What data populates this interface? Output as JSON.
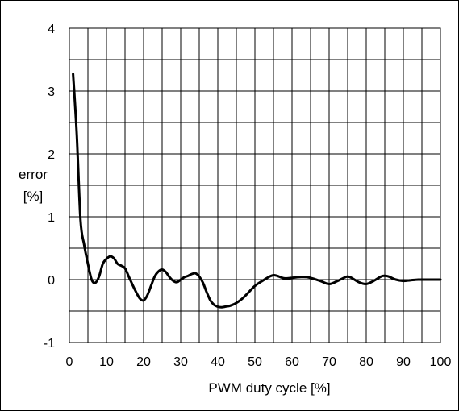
{
  "chart_data": {
    "type": "line",
    "title": "",
    "xlabel": "PWM duty cycle [%]",
    "ylabel_lines": [
      "error",
      "[%]"
    ],
    "xlim": [
      0,
      100
    ],
    "ylim": [
      -1,
      4
    ],
    "xticks": [
      0,
      10,
      20,
      30,
      40,
      50,
      60,
      70,
      80,
      90,
      100
    ],
    "yticks": [
      -1,
      0,
      1,
      2,
      3,
      4
    ],
    "grid": true,
    "grid_x_step": 5,
    "grid_y_step": 0.5,
    "line_color": "#000000",
    "series": [
      {
        "x": [
          1,
          2,
          3,
          4,
          5,
          6,
          7,
          8,
          9,
          10,
          11,
          12,
          13,
          14,
          15,
          16,
          17,
          18,
          19,
          20,
          21,
          22,
          23,
          24,
          25,
          26,
          27,
          28,
          29,
          30,
          31,
          32,
          33,
          34,
          35,
          36,
          37,
          38,
          39,
          40,
          41,
          42,
          43,
          44,
          45,
          46,
          47,
          48,
          50,
          52,
          54,
          55,
          56,
          58,
          60,
          62,
          64,
          66,
          68,
          70,
          72,
          74,
          75,
          76,
          78,
          80,
          82,
          84,
          85,
          86,
          88,
          90,
          92,
          94,
          96,
          98,
          100
        ],
        "y": [
          3.27,
          2.3,
          0.95,
          0.55,
          0.25,
          0.0,
          -0.05,
          0.05,
          0.25,
          0.33,
          0.37,
          0.34,
          0.25,
          0.22,
          0.18,
          0.05,
          -0.08,
          -0.2,
          -0.3,
          -0.33,
          -0.25,
          -0.1,
          0.05,
          0.13,
          0.16,
          0.12,
          0.04,
          -0.02,
          -0.04,
          0.0,
          0.04,
          0.06,
          0.09,
          0.1,
          0.05,
          -0.05,
          -0.2,
          -0.33,
          -0.4,
          -0.43,
          -0.44,
          -0.43,
          -0.42,
          -0.4,
          -0.37,
          -0.33,
          -0.28,
          -0.22,
          -0.1,
          -0.02,
          0.05,
          0.07,
          0.06,
          0.02,
          0.03,
          0.04,
          0.04,
          0.01,
          -0.03,
          -0.07,
          -0.03,
          0.03,
          0.05,
          0.03,
          -0.04,
          -0.07,
          -0.02,
          0.05,
          0.06,
          0.05,
          0.0,
          -0.02,
          -0.01,
          0.0,
          0.0,
          0.0,
          0.0
        ]
      }
    ]
  }
}
